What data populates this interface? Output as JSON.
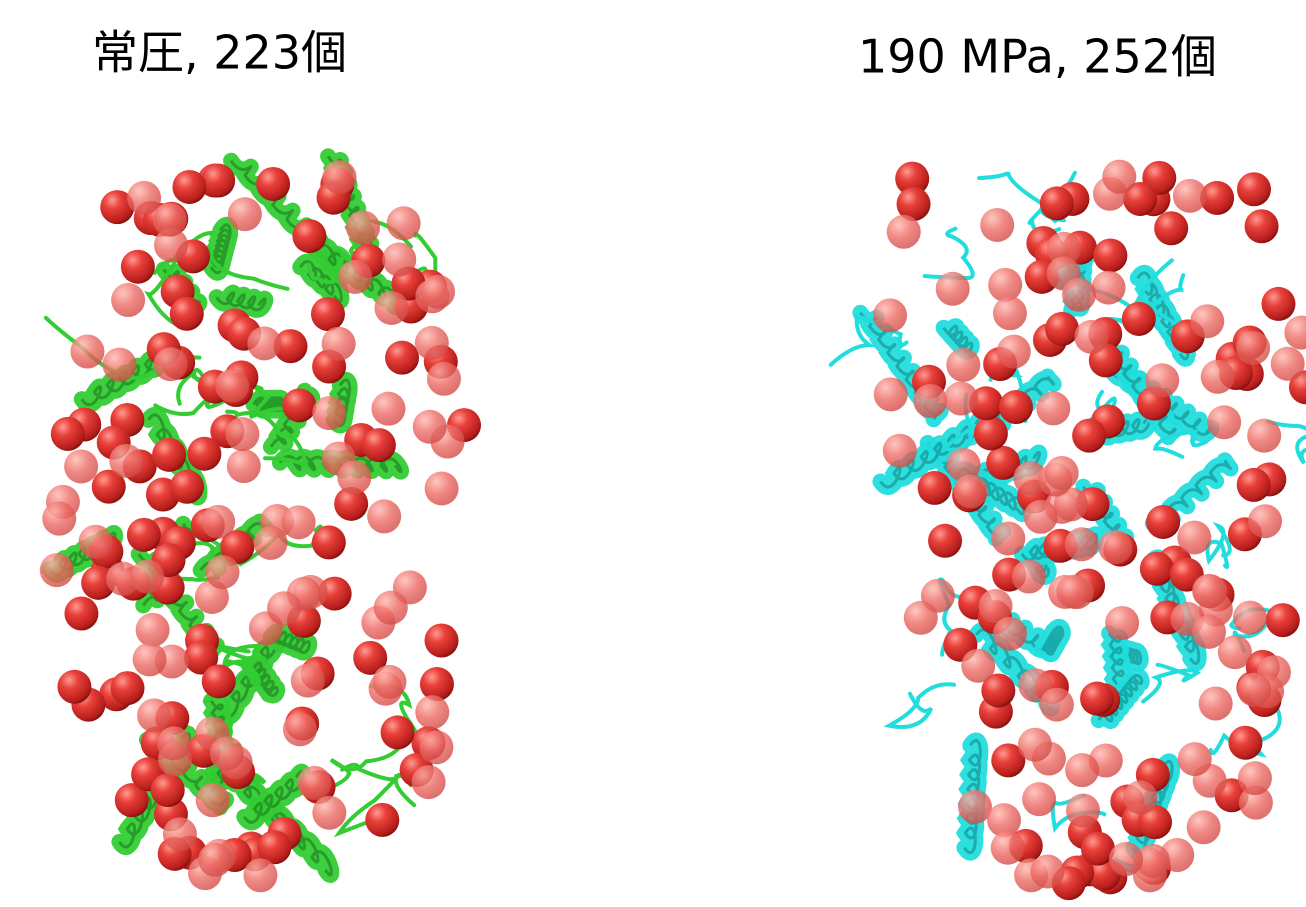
{
  "panels": [
    {
      "label": "常圧, 223個"
    },
    {
      "label": "190 MPa, 252個"
    }
  ]
}
